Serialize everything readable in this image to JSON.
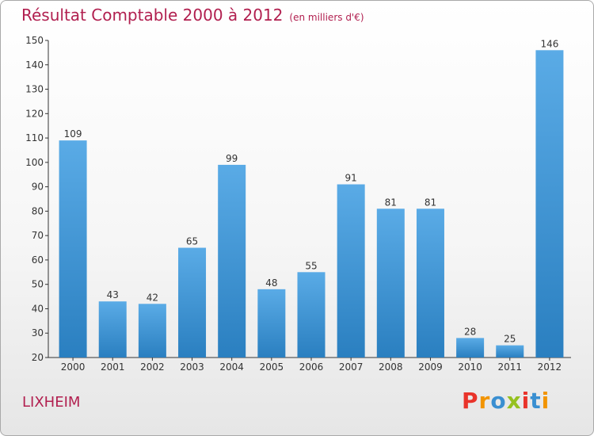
{
  "header": {
    "title": "Résultat Comptable 2000 à 2012",
    "subtitle": "(en milliers d'€)"
  },
  "footer": {
    "commune": "LIXHEIM",
    "logo_text": "Proxiti",
    "logo_colors": [
      "#e9332a",
      "#f29400",
      "#3a8fd1",
      "#95c11f",
      "#e9332a",
      "#3a8fd1",
      "#f29400"
    ]
  },
  "colors": {
    "bar_top": "#5aabe6",
    "bar_bottom": "#2a7fc0",
    "title": "#b11f4f",
    "axis": "#333333"
  },
  "chart_data": {
    "type": "bar",
    "categories": [
      "2000",
      "2001",
      "2002",
      "2003",
      "2004",
      "2005",
      "2006",
      "2007",
      "2008",
      "2009",
      "2010",
      "2011",
      "2012"
    ],
    "values": [
      109,
      43,
      42,
      65,
      99,
      48,
      55,
      91,
      81,
      81,
      28,
      25,
      146
    ],
    "data_labels": [
      "109",
      "43",
      "42",
      "65",
      "99",
      "48",
      "55",
      "91",
      "81",
      "81",
      "28",
      "25",
      "146"
    ],
    "ylim": [
      20,
      150
    ],
    "yticks": [
      20,
      30,
      40,
      50,
      60,
      70,
      80,
      90,
      100,
      110,
      120,
      130,
      140,
      150
    ],
    "grid": false,
    "xlabel": "",
    "ylabel": ""
  }
}
